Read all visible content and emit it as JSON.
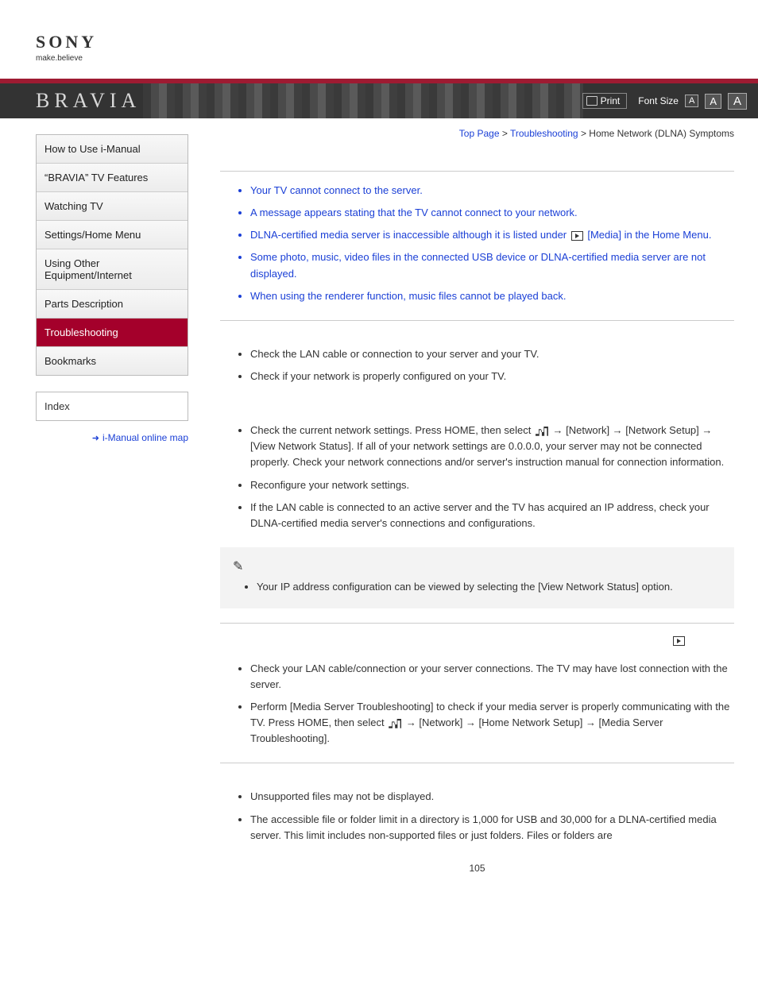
{
  "logo": {
    "brand": "SONY",
    "tagline": "make.believe"
  },
  "banner": {
    "brand": "BRAVIA",
    "print_label": "Print",
    "font_size_label": "Font Size",
    "fs_small": "A",
    "fs_mid": "A",
    "fs_large": "A"
  },
  "breadcrumb": {
    "top": "Top Page",
    "cat": "Troubleshooting",
    "current": "Home Network (DLNA) Symptoms",
    "sep1": " > ",
    "sep2": " > "
  },
  "nav": {
    "items": [
      "How to Use i-Manual",
      "“BRAVIA” TV Features",
      "Watching TV",
      "Settings/Home Menu",
      "Using Other Equipment/Internet",
      "Parts Description",
      "Troubleshooting",
      "Bookmarks"
    ],
    "index": "Index",
    "map": "i-Manual online map"
  },
  "symptoms": {
    "s1": "Your TV cannot connect to the server.",
    "s2": "A message appears stating that the TV cannot connect to your network.",
    "s3a": "DLNA-certified media server is inaccessible although it is listed under ",
    "s3b": " [Media] in the Home Menu.",
    "s4": "Some photo, music, video files in the connected USB device or DLNA-certified media server are not displayed.",
    "s5": "When using the renderer function, music files cannot be played back."
  },
  "sec1": {
    "b1": "Check the LAN cable or connection to your server and your TV.",
    "b2": "Check if your network is properly configured on your TV."
  },
  "sec2": {
    "b1a": "Check the current network settings. Press HOME, then select ",
    "b1b": " → [Network] → [Network Setup] → [View Network Status]. If all of your network settings are 0.0.0.0, your server may not be connected properly. Check your network connections and/or server's instruction manual for connection information.",
    "b2": "Reconfigure your network settings.",
    "b3": "If the LAN cable is connected to an active server and the TV has acquired an IP address, check your DLNA-certified media server's connections and configurations.",
    "note": "Your IP address configuration can be viewed by selecting the [View Network Status] option."
  },
  "sec3": {
    "b1": "Check your LAN cable/connection or your server connections. The TV may have lost connection with the server.",
    "b2a": "Perform [Media Server Troubleshooting] to check if your media server is properly communicating with the TV. Press HOME, then select ",
    "b2b": " → [Network] → [Home Network Setup] → [Media Server Troubleshooting]."
  },
  "sec4": {
    "b1": "Unsupported files may not be displayed.",
    "b2": "The accessible file or folder limit in a directory is 1,000 for USB and 30,000 for a DLNA-certified media server. This limit includes non-supported files or just folders. Files or folders are"
  },
  "page_number": "105",
  "colors": {
    "accent_red": "#a4002b",
    "link_blue": "#1a3fd6",
    "top_bar": "#9e1b32",
    "banner_bg": "#333333",
    "nav_bg": "#f4f3f3",
    "note_bg": "#f3f3f3",
    "rule": "#cccccc",
    "text": "#333333"
  }
}
